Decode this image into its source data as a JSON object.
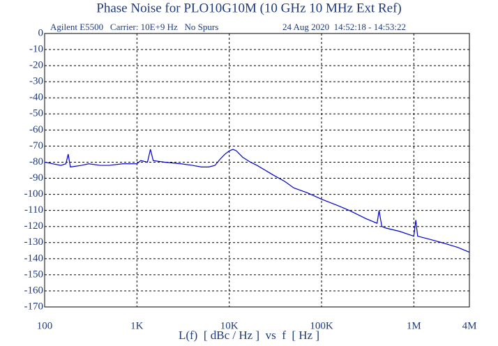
{
  "chart_data": {
    "type": "line",
    "title": "Phase Noise for PLO10G10M (10 GHz 10 MHz Ext Ref)",
    "annotations": [
      "Agilent E5500   Carrier: 10E+9 Hz   No Spurs",
      "24 Aug 2020  14:52:18 - 14:53:22"
    ],
    "x_label": "L(f)  [ dBc / Hz ]  vs  f  [ Hz ]",
    "x_scale": "log",
    "xlim": [
      100,
      4000000
    ],
    "xticks": [
      100,
      {
        "value": 1000,
        "label": "1K"
      },
      {
        "value": 10000,
        "label": "10K"
      },
      {
        "value": 100000,
        "label": "100K"
      },
      {
        "value": 1000000,
        "label": "1M"
      },
      {
        "value": 4000000,
        "label": "4M"
      }
    ],
    "ylim": [
      -170,
      0
    ],
    "yticks": [
      0,
      -10,
      -20,
      -30,
      -40,
      -50,
      -60,
      -70,
      -80,
      -90,
      -100,
      -110,
      -120,
      -130,
      -140,
      -150,
      -160,
      -170
    ],
    "grid": true,
    "series": [
      {
        "color": "#0000cc",
        "x": [
          100,
          150,
          170,
          180,
          190,
          250,
          300,
          400,
          500,
          700,
          1000,
          1100,
          1300,
          1400,
          1500,
          2000,
          3000,
          4000,
          5000,
          6000,
          7000,
          8000,
          9000,
          10000,
          11000,
          12000,
          14000,
          17000,
          20000,
          30000,
          40000,
          50000,
          70000,
          100000,
          150000,
          200000,
          300000,
          400000,
          420000,
          450000,
          500000,
          700000,
          1000000,
          1050000,
          1100000,
          1500000,
          2000000,
          3000000,
          4000000
        ],
        "values": [
          -80,
          -82,
          -81,
          -75,
          -83,
          -82,
          -81,
          -82,
          -82,
          -81,
          -81,
          -79,
          -80,
          -72,
          -79,
          -80,
          -81,
          -82,
          -83,
          -83,
          -82,
          -78,
          -75,
          -73,
          -72,
          -73,
          -77,
          -80,
          -82,
          -88,
          -92,
          -96,
          -99,
          -103,
          -107,
          -110,
          -115,
          -118,
          -110,
          -120,
          -121,
          -123,
          -126,
          -116,
          -126,
          -128,
          -130,
          -133,
          -136
        ]
      }
    ]
  }
}
